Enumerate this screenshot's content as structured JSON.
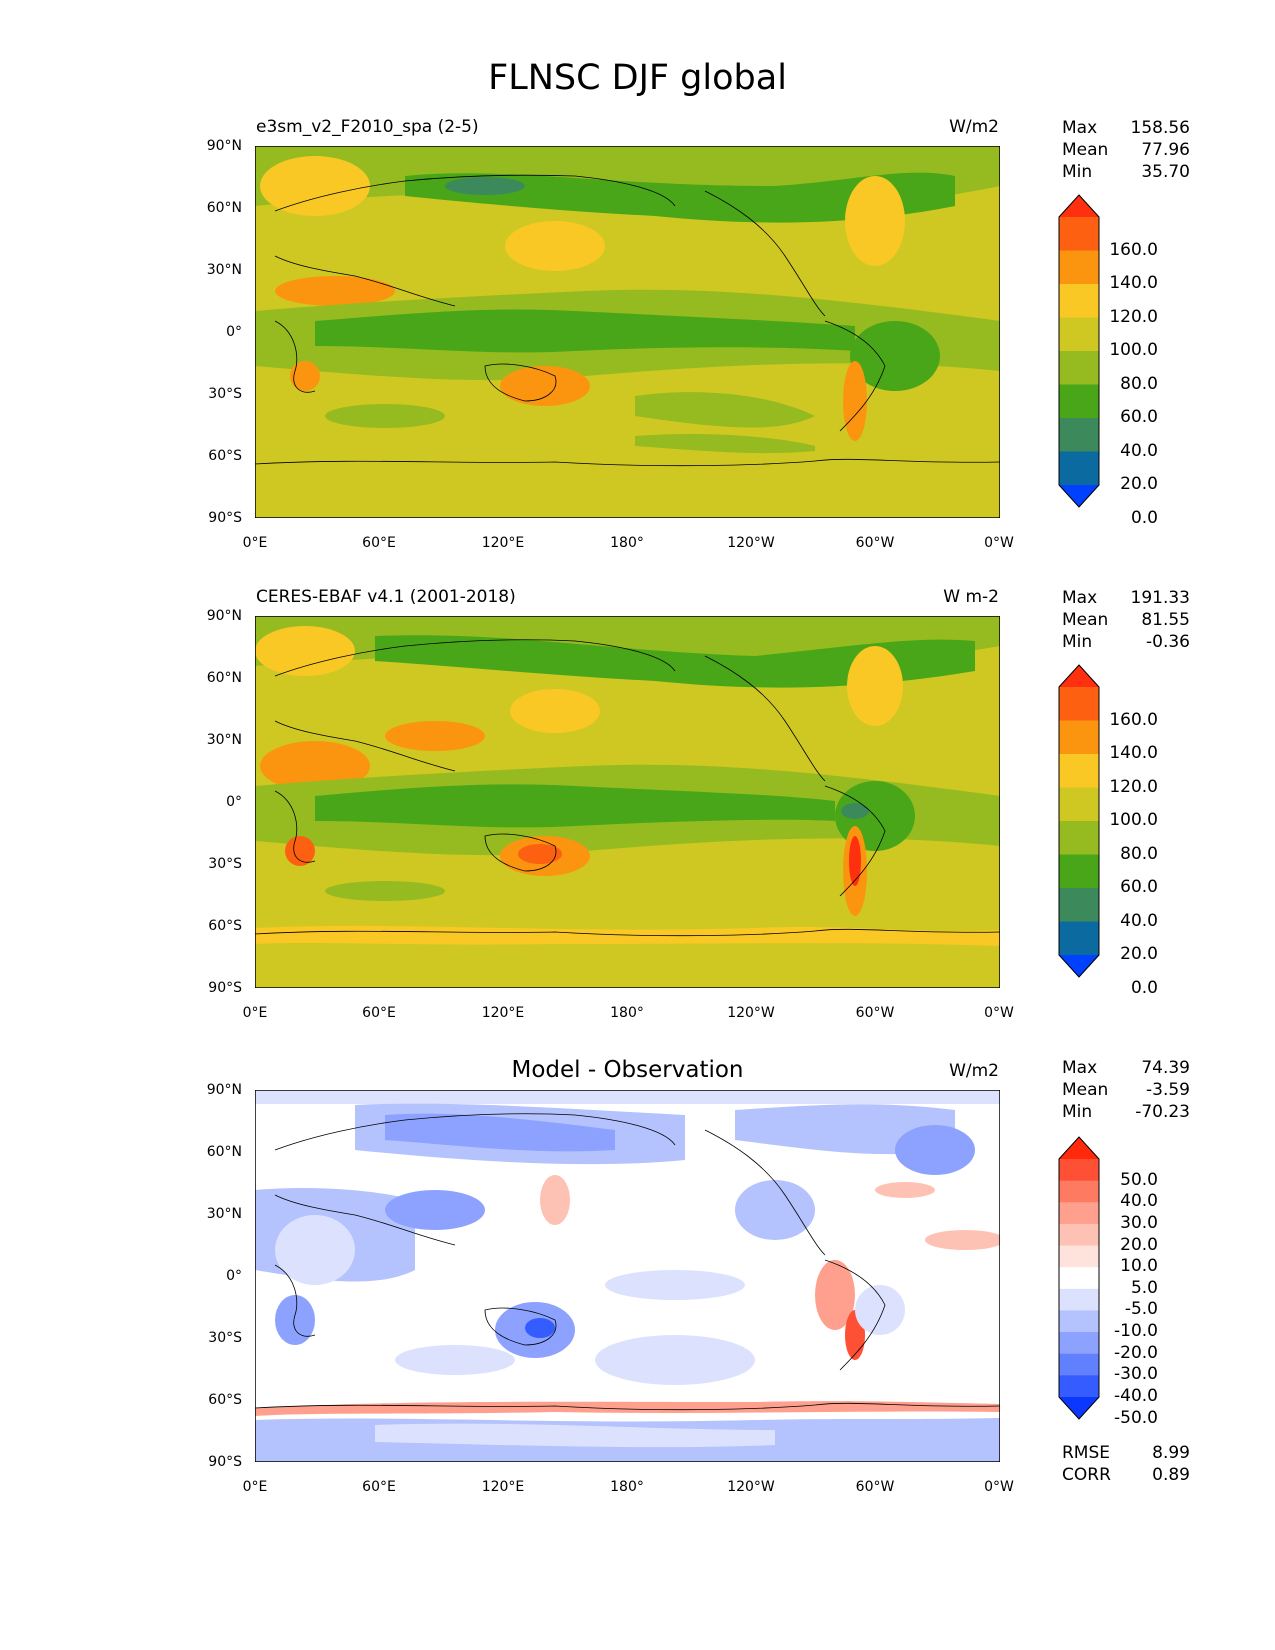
{
  "title": "FLNSC DJF global",
  "lat_labels": [
    "90°N",
    "60°N",
    "30°N",
    "0°",
    "30°S",
    "60°S",
    "90°S"
  ],
  "lon_labels": [
    "0°E",
    "60°E",
    "120°E",
    "180°",
    "120°W",
    "60°W",
    "0°W"
  ],
  "panels": [
    {
      "left_title": "e3sm_v2_F2010_spa (2-5)",
      "center_title": "",
      "right_title": "W/m2",
      "stats": [
        {
          "label": "Max",
          "value": "158.56"
        },
        {
          "label": "Mean",
          "value": "77.96"
        },
        {
          "label": "Min",
          "value": "35.70"
        }
      ],
      "colorbar_labels": [
        "160.0",
        "140.0",
        "120.0",
        "100.0",
        "80.0",
        "60.0",
        "40.0",
        "20.0",
        "0.0"
      ],
      "colorbar_colors": [
        "#ff3010",
        "#fc6010",
        "#fb9510",
        "#f9c824",
        "#cfc823",
        "#96bb20",
        "#4aa619",
        "#3c8a5c",
        "#0b6aa0",
        "#0040ff"
      ]
    },
    {
      "left_title": "CERES-EBAF v4.1 (2001-2018)",
      "center_title": "",
      "right_title": "W m-2",
      "stats": [
        {
          "label": "Max",
          "value": "191.33"
        },
        {
          "label": "Mean",
          "value": "81.55"
        },
        {
          "label": "Min",
          "value": "-0.36"
        }
      ],
      "colorbar_labels": [
        "160.0",
        "140.0",
        "120.0",
        "100.0",
        "80.0",
        "60.0",
        "40.0",
        "20.0",
        "0.0"
      ],
      "colorbar_colors": [
        "#ff3010",
        "#fc6010",
        "#fb9510",
        "#f9c824",
        "#cfc823",
        "#96bb20",
        "#4aa619",
        "#3c8a5c",
        "#0b6aa0",
        "#0040ff"
      ]
    },
    {
      "left_title": "",
      "center_title": "Model - Observation",
      "right_title": "W/m2",
      "stats": [
        {
          "label": "Max",
          "value": "74.39"
        },
        {
          "label": "Mean",
          "value": "-3.59"
        },
        {
          "label": "Min",
          "value": "-70.23"
        }
      ],
      "colorbar_labels": [
        "50.0",
        "40.0",
        "30.0",
        "20.0",
        "10.0",
        "5.0",
        "-5.0",
        "-10.0",
        "-20.0",
        "-30.0",
        "-40.0",
        "-50.0"
      ],
      "colorbar_colors": [
        "#ff2a0c",
        "#fe5035",
        "#fe7a60",
        "#fea08d",
        "#fec2b4",
        "#fee2dc",
        "#ffffff",
        "#dce2fe",
        "#b4c2fe",
        "#8da2fe",
        "#6080fe",
        "#355cfe",
        "#0c38fe"
      ],
      "metrics": [
        {
          "label": "RMSE",
          "value": "8.99"
        },
        {
          "label": "CORR",
          "value": "0.89"
        }
      ]
    }
  ]
}
